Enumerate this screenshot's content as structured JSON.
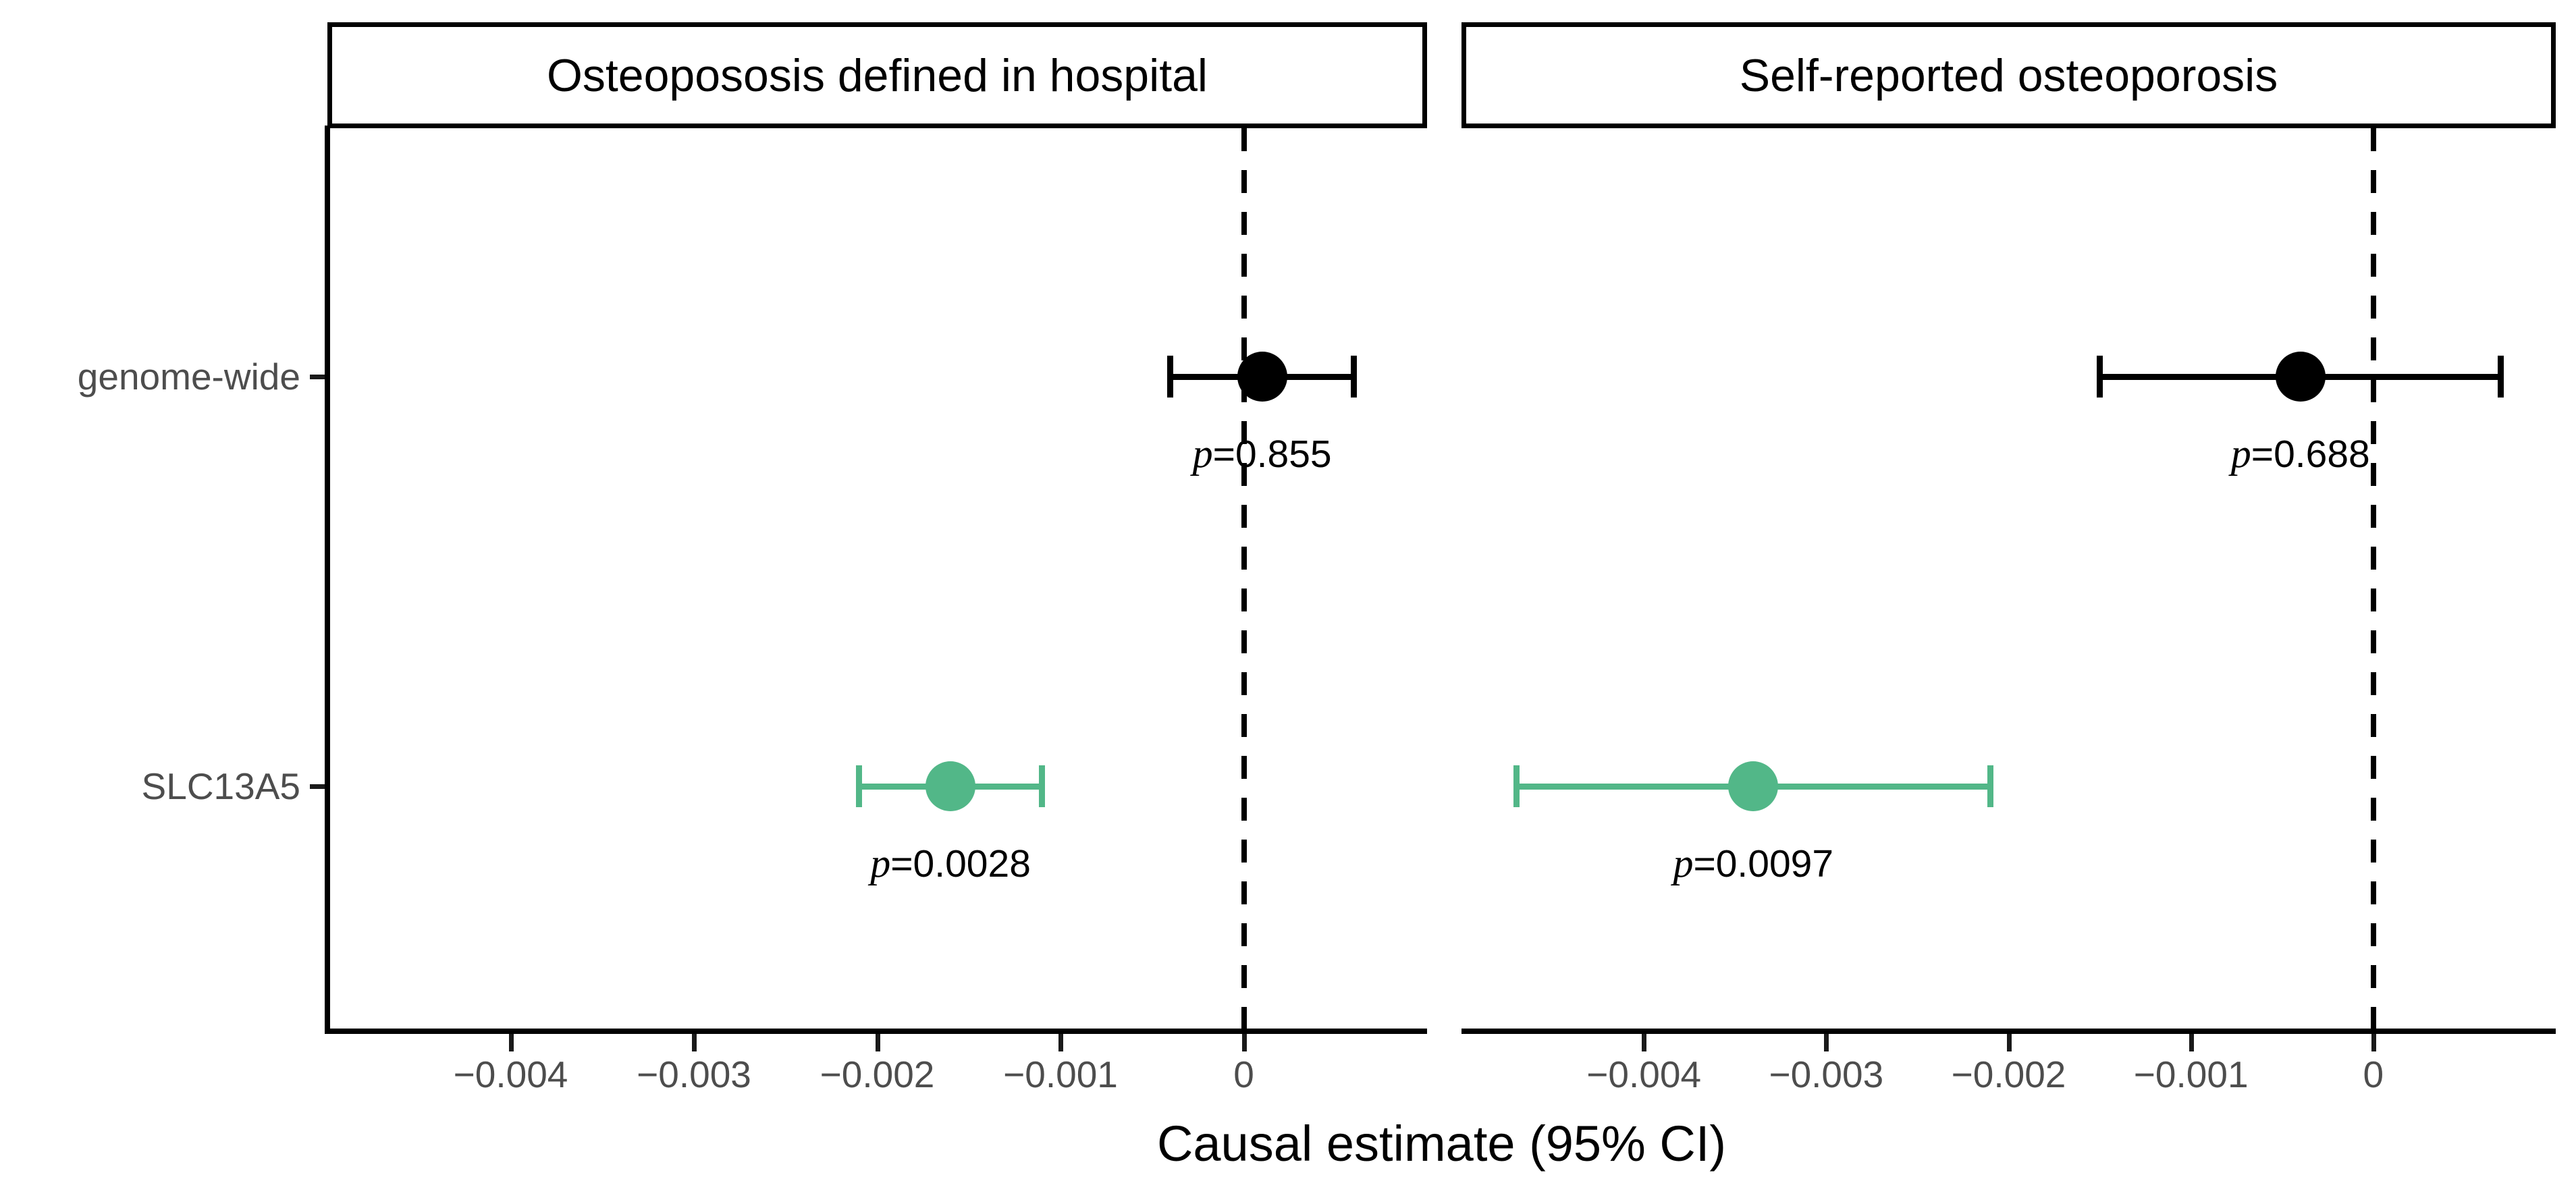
{
  "figure": {
    "background": "#ffffff"
  },
  "chart_data": {
    "type": "scatter",
    "subtype": "forest-plot-with-error-bars",
    "title": "",
    "xlabel": "Causal estimate (95% CI)",
    "ylabel": "",
    "grid": false,
    "legend": false,
    "facets": [
      {
        "title": "Osteopososis defined in hospital"
      },
      {
        "title": "Self-reported osteoporosis"
      }
    ],
    "categories": [
      "genome-wide",
      "SLC13A5"
    ],
    "xlim": [
      -0.005,
      0.001
    ],
    "x_ticks": [
      -0.004,
      -0.003,
      -0.002,
      -0.001,
      0
    ],
    "x_tick_labels": [
      "−0.004",
      "−0.003",
      "−0.002",
      "−0.001",
      "0"
    ],
    "reference_line_x": 0,
    "series": [
      {
        "facet": "Osteopososis defined in hospital",
        "category": "genome-wide",
        "estimate": 0.0001,
        "ci_low": -0.0004,
        "ci_high": 0.0006,
        "p_label": "p=0.855",
        "color": "#000000"
      },
      {
        "facet": "Osteopososis defined in hospital",
        "category": "SLC13A5",
        "estimate": -0.0016,
        "ci_low": -0.0021,
        "ci_high": -0.0011,
        "p_label": "p=0.0028",
        "color": "#52b788"
      },
      {
        "facet": "Self-reported osteoporosis",
        "category": "genome-wide",
        "estimate": -0.0004,
        "ci_low": -0.0015,
        "ci_high": 0.0007,
        "p_label": "p=0.688",
        "color": "#000000"
      },
      {
        "facet": "Self-reported osteoporosis",
        "category": "SLC13A5",
        "estimate": -0.0034,
        "ci_low": -0.0047,
        "ci_high": -0.0021,
        "p_label": "p=0.0097",
        "color": "#52b788"
      }
    ],
    "colors": {
      "highlight_green": "#52b788",
      "default_black": "#000000",
      "axis_text": "#4d4d4d"
    }
  }
}
